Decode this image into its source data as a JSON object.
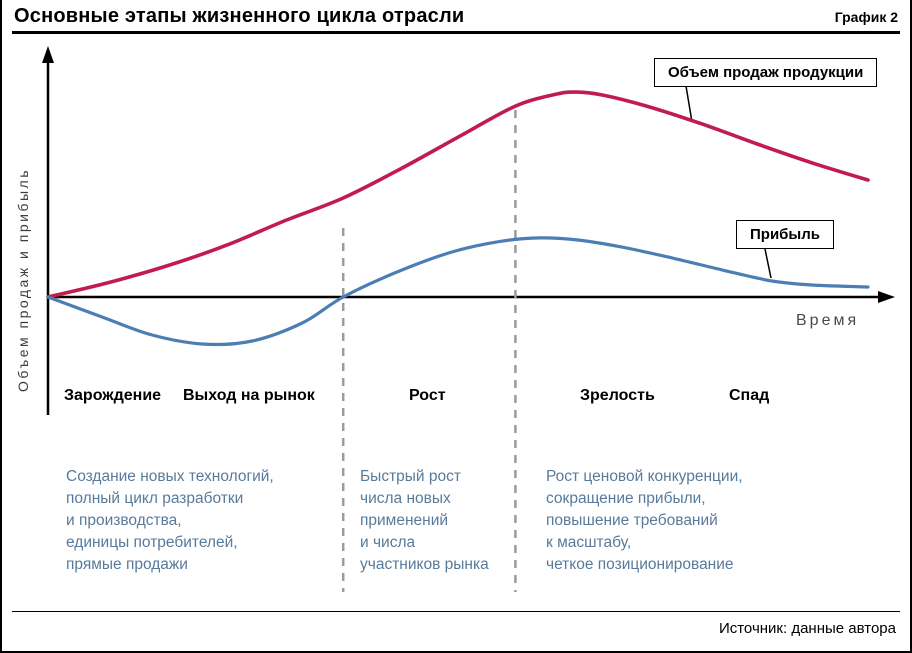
{
  "header": {
    "title": "Основные этапы жизненного цикла отрасли",
    "tag": "График 2"
  },
  "labels": {
    "sales": "Объем продаж продукции",
    "profit": "Прибыль"
  },
  "chart_data": {
    "type": "line",
    "title": "Основные этапы жизненного цикла отрасли",
    "xlabel": "Время",
    "ylabel": "Объем продаж и прибыль",
    "x_range": [
      0,
      100
    ],
    "ylim": [
      -30,
      100
    ],
    "grid": false,
    "legend_position": "inline-callouts",
    "series": [
      {
        "name": "Объем продаж продукции",
        "color": "#c01d4e",
        "points": [
          [
            0,
            0
          ],
          [
            7.2,
            6.3
          ],
          [
            14.5,
            14
          ],
          [
            21.8,
            23.4
          ],
          [
            29.1,
            34.7
          ],
          [
            36,
            44.6
          ],
          [
            43.2,
            58.1
          ],
          [
            50.5,
            73
          ],
          [
            57,
            86
          ],
          [
            62,
            91.4
          ],
          [
            64.5,
            92.3
          ],
          [
            67.6,
            91
          ],
          [
            73,
            86
          ],
          [
            79.8,
            77.9
          ],
          [
            86.5,
            68.9
          ],
          [
            93.2,
            60.4
          ],
          [
            100,
            52.7
          ]
        ]
      },
      {
        "name": "Прибыль",
        "color": "#4c7eb4",
        "points": [
          [
            0,
            0
          ],
          [
            6.6,
            -9
          ],
          [
            12.7,
            -17.1
          ],
          [
            19,
            -21.2
          ],
          [
            24.9,
            -19.8
          ],
          [
            31,
            -11.7
          ],
          [
            36,
            0
          ],
          [
            42.6,
            11.3
          ],
          [
            49.3,
            20.3
          ],
          [
            55.4,
            25.2
          ],
          [
            60,
            26.6
          ],
          [
            64.5,
            25.7
          ],
          [
            70,
            22.5
          ],
          [
            76.1,
            17.6
          ],
          [
            82.2,
            12.2
          ],
          [
            88.3,
            7.2
          ],
          [
            93.2,
            5.4
          ],
          [
            100,
            4.5
          ]
        ]
      }
    ],
    "phase_boundaries_x": [
      36,
      57
    ],
    "phases": [
      "Зарождение",
      "Выход на рынок",
      "Рост",
      "Зрелость",
      "Спад"
    ]
  },
  "descriptions": [
    "Создание новых технологий,\nполный цикл разработки\nи производства,\nединицы потребителей,\nпрямые продажи",
    "Быстрый рост\nчисла новых\nприменений\nи числа\nучастников рынка",
    "Рост ценовой конкуренции,\nсокращение прибыли,\nповышение требований\nк масштабу,\nчеткое позиционирование"
  ],
  "footer": {
    "source": "Источник: данные автора"
  }
}
